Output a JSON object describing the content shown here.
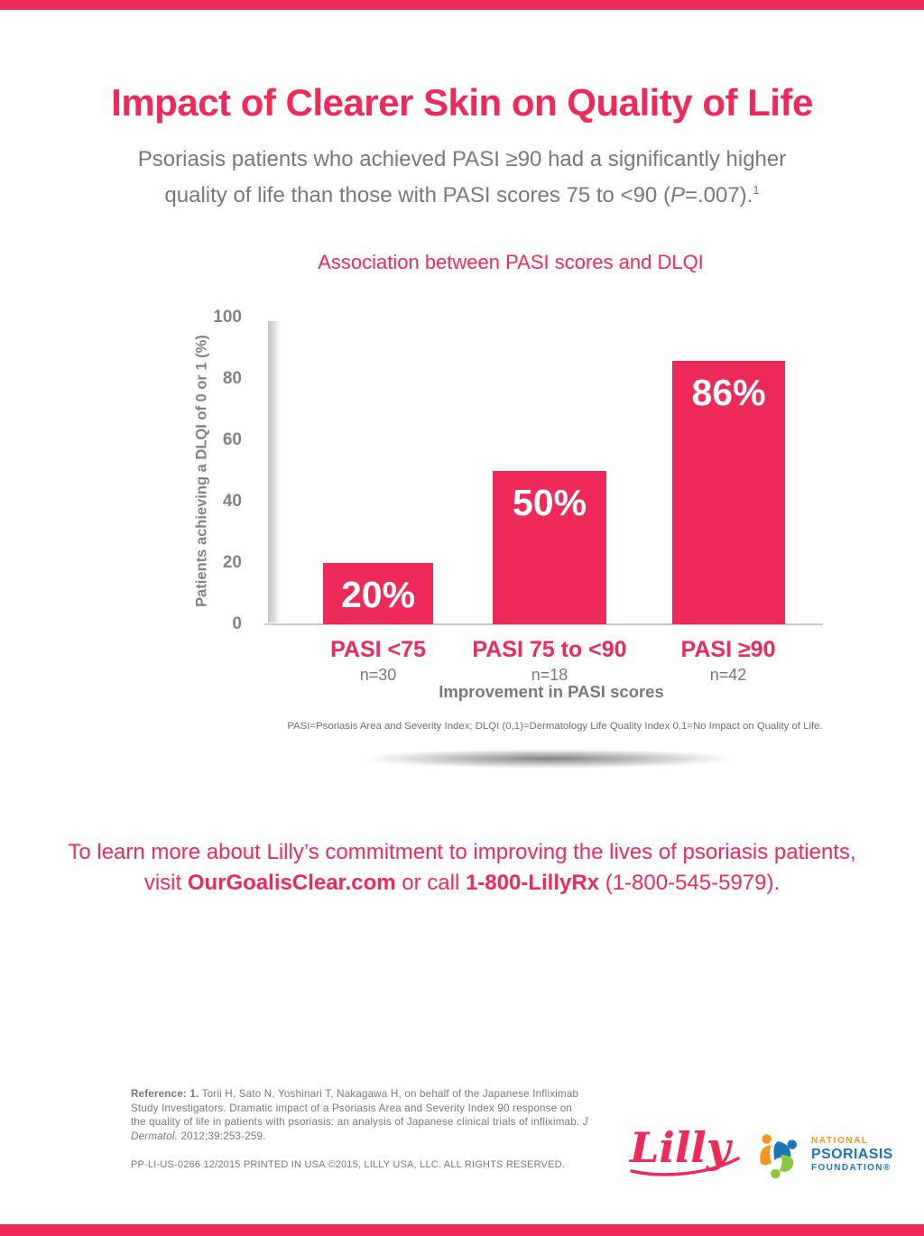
{
  "colors": {
    "accent": "#ee2a5b",
    "gray_text": "#77787b",
    "axis_gray": "#808285",
    "npf_orange": "#f7941e",
    "npf_blue": "#1b75bc",
    "npf_green": "#8dc63f"
  },
  "header": {
    "title": "Impact of Clearer Skin on Quality of Life",
    "subtitle_line1": "Psoriasis patients who achieved PASI ≥90 had a significantly higher",
    "subtitle_line2_pre": "quality of life than those with PASI scores 75 to <90 (",
    "subtitle_p_italic": "P",
    "subtitle_line2_post": "=.007).",
    "subtitle_superscript": "1"
  },
  "chart_data": {
    "type": "bar",
    "title": "Association between PASI scores and DLQI",
    "categories": [
      "PASI <75",
      "PASI 75 to <90",
      "PASI ≥90"
    ],
    "sample_sizes": [
      "n=30",
      "n=18",
      "n=42"
    ],
    "values": [
      20,
      50,
      86
    ],
    "value_labels": [
      "20%",
      "50%",
      "86%"
    ],
    "xlabel": "Improvement in PASI scores",
    "ylabel": "Patients achieving a DLQI of 0 or 1 (%)",
    "ylim": [
      0,
      100
    ],
    "yticks": [
      0,
      20,
      40,
      60,
      80,
      100
    ],
    "bar_color": "#ee2a5b",
    "grid": false,
    "legend": "none",
    "footnote": "PASI=Psoriasis Area and Severity Index; DLQI (0,1)=Dermatology Life Quality Index 0,1=No Impact on Quality of Life."
  },
  "cta": {
    "line1": "To learn more about Lilly’s commitment to improving the lives of psoriasis patients,",
    "visit_prefix": "visit ",
    "website": "OurGoalisClear.com",
    "or_call": " or call ",
    "phone_name": "1-800-LillyRx",
    "phone_suffix": " (1-800-545-5979)."
  },
  "footer": {
    "reference_bold": "Reference: 1.",
    "reference_body": " Torii H, Sato N, Yoshinari T, Nakagawa H, on behalf of the Japanese Infliximab Study Investigators. Dramatic impact of a Psoriasis Area and Severity Index 90 response on the quality of life in patients with psoriasis: an analysis of Japanese clinical trials of infliximab. ",
    "reference_journal": "J Dermatol.",
    "reference_tail": " 2012;39:253-259.",
    "legal": "PP-LI-US-0266 12/2015 PRINTED IN USA ©2015, LILLY USA, LLC. ALL RIGHTS RESERVED.",
    "lilly_logo_text": "Lilly",
    "npf_line1": "NATIONAL",
    "npf_line2": "PSORIASIS",
    "npf_line3": "FOUNDATION®"
  }
}
